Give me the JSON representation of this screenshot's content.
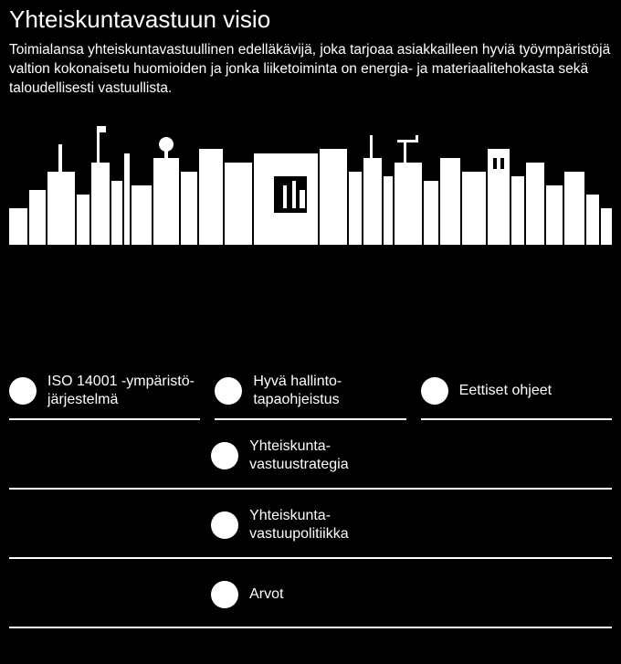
{
  "colors": {
    "background": "#000000",
    "foreground": "#ffffff",
    "divider": "#ffffff",
    "dot": "#ffffff"
  },
  "title": "Yhteiskuntavastuun visio",
  "description": "Toimialansa yhteiskuntavastuullinen edelläkävijä, joka tarjoaa asiakkailleen hyviä työympäristöjä valtion kokonaisetu huomioiden ja jonka liiketoiminta on energia- ja materiaalitehokasta sekä taloudellisesti vastuullista.",
  "skyline": {
    "fill": "#ffffff",
    "background": "#000000"
  },
  "tiers": [
    {
      "layout": "three",
      "split_underline": true,
      "items": [
        {
          "label_html": "ISO 14001 -ympäristö-\njärjestelmä"
        },
        {
          "label_html": "Hyvä hallinto-\ntapaohjeistus"
        },
        {
          "label_html": "Eettiset ohjeet"
        }
      ]
    },
    {
      "layout": "one",
      "items": [
        {
          "label_html": "Yhteiskunta-\nvastuustrategia"
        }
      ]
    },
    {
      "layout": "one",
      "items": [
        {
          "label_html": "Yhteiskunta-\nvastuupolitiikka"
        }
      ]
    },
    {
      "layout": "one",
      "items": [
        {
          "label_html": "Arvot"
        }
      ]
    }
  ]
}
